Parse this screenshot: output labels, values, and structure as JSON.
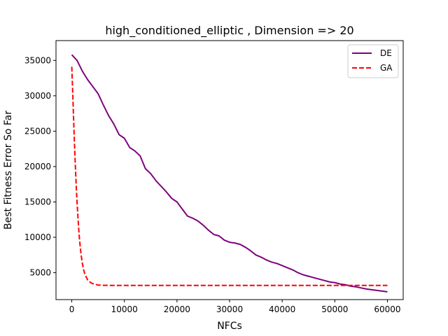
{
  "chart_data": {
    "type": "line",
    "title": "high_conditioned_elliptic , Dimension => 20",
    "xlabel": "NFCs",
    "ylabel": "Best Fitness Error So Far",
    "xlim": [
      -3000,
      63000
    ],
    "ylim": [
      1200,
      37800
    ],
    "xticks": [
      0,
      10000,
      20000,
      30000,
      40000,
      50000,
      60000
    ],
    "xtick_labels": [
      "0",
      "10000",
      "20000",
      "30000",
      "40000",
      "50000",
      "60000"
    ],
    "yticks": [
      5000,
      10000,
      15000,
      20000,
      25000,
      30000,
      35000
    ],
    "ytick_labels": [
      "5000",
      "10000",
      "15000",
      "20000",
      "25000",
      "30000",
      "35000"
    ],
    "grid": false,
    "legend_position": "top-right",
    "series": [
      {
        "name": "DE",
        "color": "#800080",
        "style": "solid",
        "x": [
          0,
          1000,
          2000,
          3000,
          4000,
          5000,
          6000,
          7000,
          8000,
          9000,
          10000,
          11000,
          12000,
          13000,
          14000,
          15000,
          16000,
          17000,
          18000,
          19000,
          20000,
          21000,
          22000,
          23000,
          24000,
          25000,
          26000,
          27000,
          28000,
          29000,
          30000,
          31000,
          32000,
          33000,
          34000,
          35000,
          36000,
          37000,
          38000,
          39000,
          40000,
          41000,
          42000,
          43000,
          44000,
          45000,
          46000,
          47000,
          48000,
          49000,
          50000,
          51000,
          52000,
          53000,
          54000,
          55000,
          56000,
          57000,
          58000,
          59000,
          60000
        ],
        "values": [
          35800,
          35000,
          33500,
          32300,
          31300,
          30300,
          28700,
          27200,
          26000,
          24500,
          24000,
          22700,
          22200,
          21500,
          19700,
          19000,
          18000,
          17200,
          16400,
          15500,
          15000,
          14000,
          13000,
          12700,
          12300,
          11700,
          11000,
          10400,
          10200,
          9600,
          9300,
          9200,
          9000,
          8600,
          8100,
          7500,
          7200,
          6800,
          6500,
          6300,
          6000,
          5700,
          5400,
          5000,
          4700,
          4500,
          4300,
          4100,
          3900,
          3700,
          3600,
          3400,
          3300,
          3100,
          3000,
          2850,
          2700,
          2600,
          2500,
          2400,
          2300
        ]
      },
      {
        "name": "GA",
        "color": "#ff0000",
        "style": "dashed",
        "x": [
          0,
          200,
          400,
          600,
          800,
          1000,
          1200,
          1400,
          1600,
          1800,
          2000,
          2200,
          2400,
          2600,
          2800,
          3000,
          3300,
          3600,
          4000,
          4500,
          5000,
          6000,
          8000,
          10000,
          15000,
          20000,
          30000,
          40000,
          50000,
          60000
        ],
        "values": [
          34100,
          30000,
          25500,
          21500,
          18000,
          15000,
          12500,
          10300,
          8700,
          7400,
          6400,
          5600,
          5000,
          4600,
          4300,
          4000,
          3800,
          3600,
          3450,
          3350,
          3250,
          3220,
          3200,
          3200,
          3200,
          3200,
          3200,
          3200,
          3200,
          3200
        ]
      }
    ]
  }
}
